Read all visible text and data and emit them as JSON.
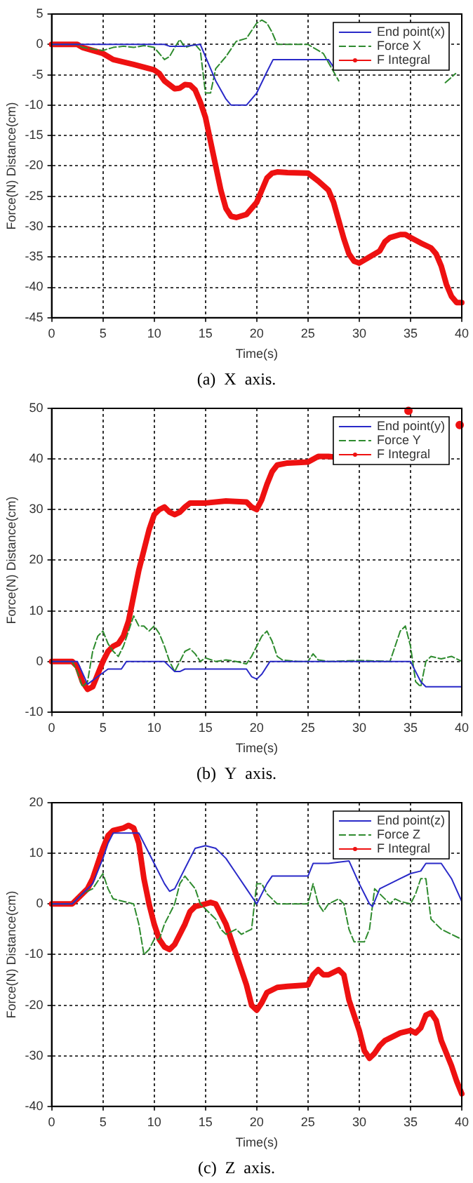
{
  "chart_data": [
    {
      "type": "line",
      "xlabel": "Time(s)",
      "ylabel": "Force(N) Distance(cm)",
      "annotations": [
        "(a)  X  axis."
      ],
      "xlim": [
        0,
        40
      ],
      "xticks": [
        0,
        5,
        10,
        15,
        20,
        25,
        30,
        35,
        40
      ],
      "ylim": [
        -45,
        5
      ],
      "yticks": [
        -45,
        -40,
        -35,
        -30,
        -25,
        -20,
        -15,
        -10,
        -5,
        0,
        5
      ],
      "grid": true,
      "legend": "top right",
      "series": [
        {
          "name": "End point(x)",
          "color": "#2a2ac8",
          "line_style": "solid",
          "x": [
            0,
            11,
            11.5,
            13,
            14.5,
            15,
            16,
            17,
            17.5,
            19,
            20,
            21,
            21.6,
            27,
            27.6
          ],
          "values": [
            0,
            0,
            -0.3,
            -0.3,
            0,
            -2,
            -6,
            -9,
            -10,
            -10,
            -8,
            -4.5,
            -2.5,
            -2.5,
            -4
          ]
        },
        {
          "name": "Force X",
          "color": "#2e8b2e",
          "line_style": "dashed",
          "x": [
            0,
            2.5,
            3,
            5,
            6,
            7,
            8,
            9,
            10,
            11,
            11.5,
            12,
            12.5,
            13,
            14,
            14.5,
            15,
            15.5,
            16,
            17,
            18,
            19,
            20,
            20.5,
            21,
            21.5,
            22,
            25,
            26,
            26.5,
            27,
            28,
            33,
            38.4,
            39.4
          ],
          "values": [
            0,
            0,
            -0.5,
            -1,
            -0.5,
            -0.3,
            -0.5,
            -0.2,
            -0.5,
            -2.5,
            -2,
            -0.5,
            0.8,
            -0.5,
            0,
            -1,
            -8,
            -8,
            -4,
            -2,
            0.5,
            1,
            3.5,
            4,
            3.5,
            2,
            0,
            0,
            -1,
            -1.5,
            -3,
            -6,
            null,
            -6.3,
            -4.8
          ]
        },
        {
          "name": "F Integral",
          "color": "#ee1111",
          "line_style": "solid",
          "marker": "circle",
          "x": [
            0,
            2.5,
            3,
            4,
            5,
            6,
            8,
            10,
            10.5,
            11,
            12,
            12.5,
            13,
            13.5,
            14,
            14.5,
            15,
            15.5,
            16,
            16.5,
            17,
            17.5,
            18,
            19,
            20,
            20.5,
            21,
            21.5,
            22,
            23,
            25,
            26,
            27,
            27.5,
            28,
            28.5,
            29,
            29.5,
            30,
            31,
            32,
            32.5,
            33,
            34,
            34.5,
            35,
            36,
            37,
            37.5,
            38,
            38.5,
            39,
            39.5,
            40
          ],
          "values": [
            0,
            0,
            -0.5,
            -1,
            -1.5,
            -2.5,
            -3.3,
            -4.2,
            -4.8,
            -6,
            -7.3,
            -7.2,
            -6.6,
            -6.7,
            -7.5,
            -9.5,
            -12,
            -16,
            -20,
            -24,
            -27,
            -28.3,
            -28.5,
            -28,
            -26,
            -24,
            -22,
            -21.2,
            -21,
            -21.1,
            -21.2,
            -22.5,
            -24,
            -26,
            -29,
            -32,
            -34.5,
            -35.7,
            -36,
            -35,
            -34,
            -32.5,
            -31.8,
            -31.3,
            -31.3,
            -31.8,
            -32.7,
            -33.5,
            -34.5,
            -36.5,
            -39.5,
            -41.5,
            -42.5,
            -42.5
          ]
        }
      ]
    },
    {
      "type": "line",
      "xlabel": "Time(s)",
      "ylabel": "Force(N) Distance(cm)",
      "annotations": [
        "(b)  Y  axis."
      ],
      "xlim": [
        0,
        40
      ],
      "xticks": [
        0,
        5,
        10,
        15,
        20,
        25,
        30,
        35,
        40
      ],
      "ylim": [
        -10,
        50
      ],
      "yticks": [
        -10,
        0,
        10,
        20,
        30,
        40,
        50
      ],
      "grid": true,
      "legend": "top right",
      "series": [
        {
          "name": "End point(y)",
          "color": "#2a2ac8",
          "line_style": "solid",
          "x": [
            0,
            2.5,
            3.5,
            4.5,
            5.5,
            6.8,
            7.3,
            11,
            11.5,
            12,
            12.5,
            13,
            19,
            19.5,
            20,
            20.5,
            21.3,
            35,
            35.5,
            36,
            36.5,
            40
          ],
          "values": [
            0,
            0,
            -4.5,
            -3,
            -1.5,
            -1.5,
            0,
            0,
            -1,
            -2,
            -2,
            -1.5,
            -1.5,
            -3,
            -3.5,
            -2.5,
            0,
            0,
            -2,
            -4,
            -5,
            -5
          ]
        },
        {
          "name": "Force Y",
          "color": "#2e8b2e",
          "line_style": "dashed",
          "x": [
            0,
            2,
            2.5,
            3,
            3.5,
            4,
            4.5,
            5,
            5.5,
            6,
            6.5,
            7,
            7.5,
            8,
            8.5,
            9,
            9.5,
            10,
            10.5,
            11,
            11.5,
            12,
            12.5,
            13,
            13.5,
            14,
            14.5,
            15,
            16,
            17,
            18,
            19,
            19.5,
            20,
            20.5,
            21,
            21.5,
            22,
            22.5,
            24,
            25,
            25.5,
            26,
            27,
            30,
            33,
            33.5,
            34,
            34.5,
            35,
            35.5,
            36,
            36.5,
            37,
            38,
            39,
            40
          ],
          "values": [
            0,
            0,
            -2,
            -5,
            -4,
            2,
            5,
            6,
            3.5,
            2,
            1,
            3,
            6,
            9,
            7,
            7,
            6,
            7,
            5.5,
            3,
            0,
            -2,
            0,
            2,
            2.5,
            1.5,
            0,
            0.7,
            0,
            0.3,
            0,
            -0.5,
            1,
            3,
            5,
            6,
            4,
            1,
            0.3,
            0,
            0,
            1.5,
            0.3,
            0,
            0.2,
            0,
            3,
            6,
            7,
            3,
            -4,
            -5,
            0,
            1,
            0.5,
            1,
            0
          ]
        },
        {
          "name": "F Integral",
          "color": "#ee1111",
          "line_style": "solid",
          "marker": "circle",
          "x": [
            0,
            2,
            2.5,
            3,
            3.5,
            4,
            4.5,
            5,
            5.5,
            6,
            6.5,
            7,
            7.5,
            8,
            8.5,
            9,
            9.5,
            10,
            10.5,
            11,
            11.5,
            12,
            12.5,
            13,
            13.5,
            15,
            17,
            19,
            19.5,
            20,
            20.5,
            21,
            21.5,
            22,
            23,
            25,
            26,
            27,
            28,
            31,
            34.8,
            37,
            39.8
          ],
          "values": [
            0,
            0,
            -1,
            -4,
            -5.5,
            -5,
            -2.5,
            0,
            2,
            3,
            3.5,
            5,
            8,
            13,
            18,
            22,
            26,
            29,
            30,
            30.5,
            29.5,
            29,
            29.5,
            30.5,
            31.3,
            31.3,
            31.7,
            31.5,
            30.5,
            30,
            32,
            35,
            37.5,
            38.8,
            39.2,
            39.4,
            40.5,
            40.5,
            40.3,
            null,
            49.5,
            null,
            46.7
          ]
        }
      ]
    },
    {
      "type": "line",
      "xlabel": "Time(s)",
      "ylabel": "Force(N) Distance(cm)",
      "annotations": [
        "(c)  Z  axis."
      ],
      "xlim": [
        0,
        40
      ],
      "xticks": [
        0,
        5,
        10,
        15,
        20,
        25,
        30,
        35,
        40
      ],
      "ylim": [
        -40,
        20
      ],
      "yticks": [
        -40,
        -30,
        -20,
        -10,
        0,
        10,
        20
      ],
      "grid": true,
      "legend": "top right",
      "series": [
        {
          "name": "End point(z)",
          "color": "#2a2ac8",
          "line_style": "solid",
          "x": [
            0,
            2,
            3,
            4,
            5,
            5.5,
            6,
            8.5,
            9,
            10,
            11,
            11.5,
            12,
            13,
            14,
            15,
            16,
            17,
            18,
            19,
            20,
            21,
            21.5,
            25,
            25.5,
            27,
            29,
            30,
            31,
            31.3,
            32,
            33,
            34,
            35,
            36,
            36.5,
            38,
            39,
            40
          ],
          "values": [
            0,
            0,
            2,
            4,
            9,
            12,
            14,
            14,
            12,
            8,
            4,
            2.5,
            3,
            7,
            11,
            11.5,
            11,
            9,
            6,
            3,
            0,
            4,
            5.5,
            5.5,
            8,
            8,
            8.5,
            4,
            0,
            -0.5,
            3,
            4,
            5,
            6,
            6.5,
            8,
            8,
            5,
            0.5
          ]
        },
        {
          "name": "Force Z",
          "color": "#2e8b2e",
          "line_style": "dashed",
          "x": [
            0,
            2,
            3,
            4,
            5,
            5.5,
            6,
            7,
            8,
            8.5,
            9,
            9.5,
            10,
            10.5,
            11,
            12,
            12.5,
            13,
            14,
            14.5,
            15,
            16,
            16.5,
            17,
            18,
            18.5,
            19.5,
            20,
            20.5,
            21,
            22,
            23,
            25,
            25.5,
            26,
            26.5,
            27,
            28,
            28.5,
            29,
            29.5,
            30.5,
            31,
            31.5,
            32,
            33,
            33.5,
            34,
            35,
            35.5,
            36,
            36.5,
            37,
            38,
            39,
            40
          ],
          "values": [
            0,
            0,
            2,
            3,
            6,
            3,
            1,
            0.5,
            0,
            -4,
            -10,
            -9,
            -7,
            -7,
            -4,
            0,
            4,
            5.5,
            3,
            0,
            -1,
            -3,
            -5,
            -6,
            -5,
            -6,
            -5,
            4,
            4,
            2,
            0,
            0,
            0,
            4,
            0,
            -1.5,
            0,
            1,
            0,
            -5,
            -7.5,
            -7.5,
            -5,
            3,
            2,
            0,
            1,
            0.5,
            0,
            2,
            5,
            5,
            -3,
            -5,
            -6,
            -7
          ]
        },
        {
          "name": "F Integral",
          "color": "#ee1111",
          "line_style": "solid",
          "marker": "circle",
          "x": [
            0,
            2,
            2.5,
            3,
            3.5,
            4,
            4.5,
            5,
            5.5,
            6,
            7,
            7.5,
            8,
            8.5,
            9,
            9.5,
            10,
            10.5,
            11,
            11.5,
            12,
            13,
            13.5,
            14,
            15,
            15.5,
            16,
            17,
            18,
            19,
            19.5,
            20,
            20.5,
            21,
            22,
            23,
            25,
            25.5,
            26,
            26.5,
            27,
            28,
            28.5,
            29,
            30,
            30.5,
            31,
            31.5,
            32,
            32.5,
            33,
            34,
            35,
            35.5,
            36,
            36.5,
            37,
            37.5,
            38,
            39,
            39.5,
            40
          ],
          "values": [
            0,
            0,
            1,
            2,
            3,
            5,
            8,
            11,
            13.5,
            14.5,
            15,
            15.5,
            15,
            12,
            5,
            0,
            -4,
            -7,
            -8.5,
            -9,
            -8,
            -4,
            -1.5,
            -0.5,
            0,
            0.3,
            0,
            -4,
            -10,
            -16,
            -20,
            -21,
            -19.5,
            -17.5,
            -16.5,
            -16.3,
            -16,
            -14,
            -13,
            -14,
            -14,
            -13,
            -14,
            -19,
            -25,
            -29,
            -30.5,
            -29.5,
            -28,
            -27,
            -26.5,
            -25.5,
            -25,
            -25.5,
            -24.5,
            -22,
            -21.5,
            -23,
            -27,
            -32,
            -35,
            -37.5
          ]
        }
      ]
    }
  ]
}
